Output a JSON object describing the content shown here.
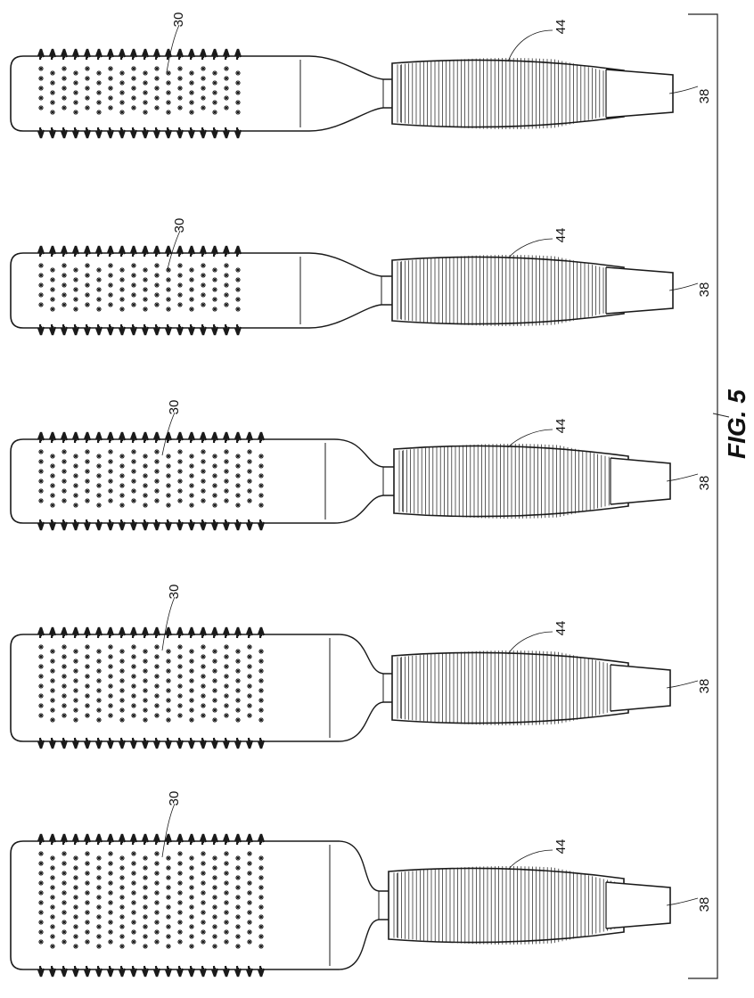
{
  "figure": {
    "label": "FIG. 5",
    "stroke": "#1a1a1a",
    "brushes": [
      {
        "ref_bristles": "30",
        "ref_grip": "44",
        "ref_end": "38",
        "barrel": "narrow"
      },
      {
        "ref_bristles": "30",
        "ref_grip": "44",
        "ref_end": "38",
        "barrel": "narrow"
      },
      {
        "ref_bristles": "30",
        "ref_grip": "44",
        "ref_end": "38",
        "barrel": "medium"
      },
      {
        "ref_bristles": "30",
        "ref_grip": "44",
        "ref_end": "38",
        "barrel": "wide"
      },
      {
        "ref_bristles": "30",
        "ref_grip": "44",
        "ref_end": "38",
        "barrel": "wide"
      }
    ]
  }
}
